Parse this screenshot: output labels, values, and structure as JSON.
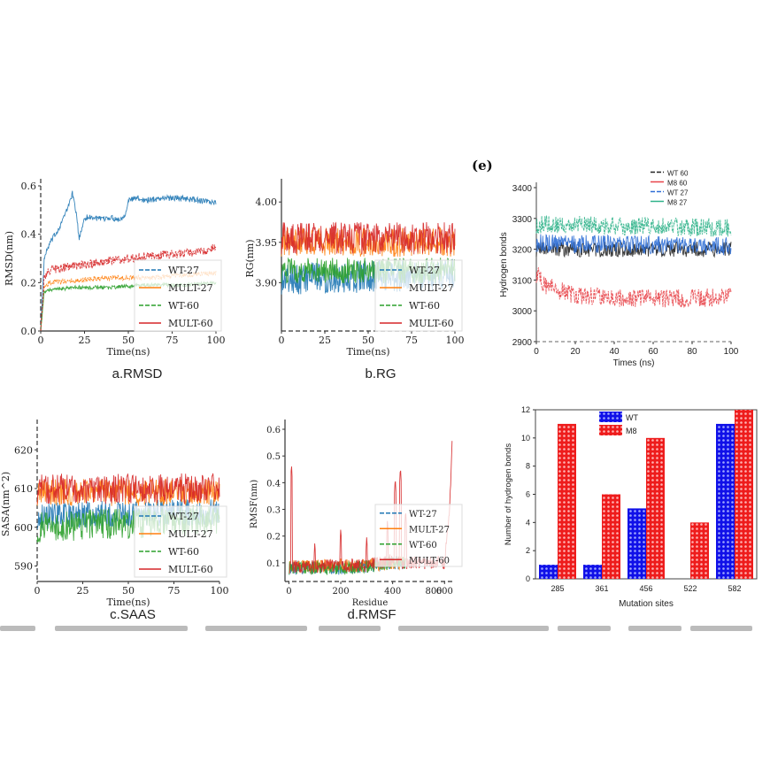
{
  "panel_e_label": "(e)",
  "captions": {
    "a": "a.RMSD",
    "b": "b.RG",
    "c": "c.SAAS",
    "d": "d.RMSF"
  },
  "colors": {
    "blue": "#1f77b4",
    "orange": "#ff7f0e",
    "green": "#2ca02c",
    "red": "#d62728",
    "bar_wt": "#1010e8",
    "bar_m8": "#ee1c1c"
  },
  "chart_data": [
    {
      "id": "a",
      "type": "line",
      "xlabel": "Time(ns)",
      "ylabel": "RMSD(nm)",
      "xlim": [
        0,
        100
      ],
      "ylim": [
        0,
        0.6
      ],
      "xticks": [
        0,
        25,
        50,
        75,
        100
      ],
      "yticks": [
        0.0,
        0.2,
        0.4,
        0.6
      ],
      "legend_position": "lower-right",
      "series": [
        {
          "name": "WT-27",
          "color": "#1f77b4",
          "x": [
            0,
            2,
            5,
            10,
            15,
            18,
            20,
            22,
            25,
            30,
            35,
            40,
            45,
            48,
            50,
            55,
            60,
            70,
            80,
            90,
            100
          ],
          "y": [
            0.0,
            0.3,
            0.36,
            0.42,
            0.5,
            0.57,
            0.5,
            0.38,
            0.47,
            0.47,
            0.46,
            0.47,
            0.46,
            0.48,
            0.54,
            0.55,
            0.54,
            0.55,
            0.55,
            0.54,
            0.53
          ],
          "noise": 0.012
        },
        {
          "name": "MULT-27",
          "color": "#ff7f0e",
          "x": [
            0,
            2,
            5,
            20,
            40,
            60,
            80,
            100
          ],
          "y": [
            0.0,
            0.18,
            0.2,
            0.21,
            0.22,
            0.22,
            0.23,
            0.24
          ],
          "noise": 0.01
        },
        {
          "name": "WT-60",
          "color": "#2ca02c",
          "x": [
            0,
            2,
            5,
            20,
            40,
            60,
            80,
            100
          ],
          "y": [
            0.0,
            0.16,
            0.17,
            0.18,
            0.18,
            0.19,
            0.19,
            0.2
          ],
          "noise": 0.008
        },
        {
          "name": "MULT-60",
          "color": "#d62728",
          "x": [
            0,
            2,
            5,
            20,
            40,
            60,
            80,
            95,
            100
          ],
          "y": [
            0.0,
            0.22,
            0.25,
            0.27,
            0.29,
            0.31,
            0.32,
            0.33,
            0.35
          ],
          "noise": 0.018
        }
      ]
    },
    {
      "id": "b",
      "type": "line",
      "xlabel": "Time(ns)",
      "ylabel": "RG(nm)",
      "xlim": [
        0,
        100
      ],
      "ylim": [
        3.84,
        4.02
      ],
      "xticks": [
        0,
        25,
        50,
        75,
        100
      ],
      "yticks": [
        3.9,
        3.95,
        4.0
      ],
      "legend_position": "lower-right",
      "series": [
        {
          "name": "WT-27",
          "color": "#1f77b4",
          "x": [
            0,
            100
          ],
          "y": [
            3.905,
            3.91
          ],
          "noise": 0.02
        },
        {
          "name": "MULT-27",
          "color": "#ff7f0e",
          "x": [
            0,
            100
          ],
          "y": [
            3.95,
            3.95
          ],
          "noise": 0.018
        },
        {
          "name": "WT-60",
          "color": "#2ca02c",
          "x": [
            0,
            100
          ],
          "y": [
            3.915,
            3.915
          ],
          "noise": 0.016
        },
        {
          "name": "MULT-60",
          "color": "#d62728",
          "x": [
            0,
            100
          ],
          "y": [
            3.955,
            3.955
          ],
          "noise": 0.02
        }
      ]
    },
    {
      "id": "c",
      "type": "line",
      "xlabel": "Time(ns)",
      "ylabel": "SASA(nm^2)",
      "xlim": [
        0,
        100
      ],
      "ylim": [
        586,
        626
      ],
      "xticks": [
        0,
        25,
        50,
        75,
        100
      ],
      "yticks": [
        590,
        600,
        610,
        620
      ],
      "legend_position": "lower-right",
      "series": [
        {
          "name": "WT-27",
          "color": "#1f77b4",
          "x": [
            0,
            100
          ],
          "y": [
            603,
            604
          ],
          "noise": 3.5
        },
        {
          "name": "MULT-27",
          "color": "#ff7f0e",
          "x": [
            0,
            100
          ],
          "y": [
            609,
            609
          ],
          "noise": 3.5
        },
        {
          "name": "WT-60",
          "color": "#2ca02c",
          "x": [
            0,
            100
          ],
          "y": [
            600,
            602
          ],
          "noise": 4
        },
        {
          "name": "MULT-60",
          "color": "#d62728",
          "x": [
            0,
            100
          ],
          "y": [
            610,
            610
          ],
          "noise": 4
        }
      ]
    },
    {
      "id": "d",
      "type": "line",
      "xlabel": "Residue",
      "ylabel": "RMSF(nm)",
      "xlim": [
        -15,
        640
      ],
      "ylim": [
        0.03,
        0.61
      ],
      "xticks": [
        0,
        200,
        400,
        600
      ],
      "yticks": [
        0.1,
        0.2,
        0.3,
        0.4,
        0.5,
        0.6
      ],
      "extra_tick_labels": [
        "800"
      ],
      "legend_position": "center-right",
      "series": [
        {
          "name": "WT-27",
          "color": "#1f77b4",
          "x": [
            0,
            100,
            200,
            300,
            400,
            450
          ],
          "y": [
            0.08,
            0.08,
            0.08,
            0.085,
            0.1,
            0.1
          ],
          "noise": 0.025
        },
        {
          "name": "MULT-27",
          "color": "#ff7f0e",
          "x": [
            0,
            100,
            200,
            300,
            400,
            450
          ],
          "y": [
            0.085,
            0.085,
            0.09,
            0.09,
            0.1,
            0.1
          ],
          "noise": 0.025
        },
        {
          "name": "WT-60",
          "color": "#2ca02c",
          "x": [
            0,
            100,
            200,
            300,
            400,
            450
          ],
          "y": [
            0.08,
            0.08,
            0.08,
            0.085,
            0.1,
            0.1
          ],
          "noise": 0.025
        },
        {
          "name": "MULT-60",
          "color": "#d62728",
          "x": [
            0,
            100,
            200,
            300,
            400,
            450,
            600,
            620,
            630
          ],
          "y": [
            0.085,
            0.085,
            0.09,
            0.09,
            0.11,
            0.1,
            0.1,
            0.3,
            0.58
          ],
          "noise": 0.025
        }
      ],
      "peaks": [
        {
          "x": 10,
          "y": 0.47
        },
        {
          "x": 100,
          "y": 0.18
        },
        {
          "x": 200,
          "y": 0.23
        },
        {
          "x": 300,
          "y": 0.2
        },
        {
          "x": 380,
          "y": 0.26
        },
        {
          "x": 410,
          "y": 0.42
        },
        {
          "x": 430,
          "y": 0.46
        },
        {
          "x": 450,
          "y": 0.3
        }
      ]
    },
    {
      "id": "e",
      "type": "line",
      "xlabel": "Times (ns)",
      "ylabel": "Hydrogen bonds",
      "xlim": [
        0,
        100
      ],
      "ylim": [
        2900,
        3400
      ],
      "xticks": [
        0,
        20,
        40,
        60,
        80,
        100
      ],
      "yticks": [
        2900,
        3000,
        3100,
        3200,
        3300,
        3400
      ],
      "legend_position": "top-center",
      "series": [
        {
          "name": "WT 60",
          "color": "#222222",
          "x": [
            0,
            100
          ],
          "y": [
            3200,
            3200
          ],
          "noise": 25
        },
        {
          "name": "M8 60",
          "color": "#e8454a",
          "x": [
            0,
            5,
            20,
            50,
            80,
            100
          ],
          "y": [
            3120,
            3080,
            3050,
            3040,
            3040,
            3050
          ],
          "noise": 30
        },
        {
          "name": "WT 27",
          "color": "#2f6fd6",
          "x": [
            0,
            100
          ],
          "y": [
            3220,
            3210
          ],
          "noise": 30
        },
        {
          "name": "M8 27",
          "color": "#2fb38a",
          "x": [
            0,
            100
          ],
          "y": [
            3280,
            3270
          ],
          "noise": 30
        }
      ]
    },
    {
      "id": "f",
      "type": "bar",
      "xlabel": "Mutation sites",
      "ylabel": "Number of hydrogen bonds",
      "ylim": [
        0,
        12
      ],
      "yticks": [
        0,
        2,
        4,
        6,
        8,
        10,
        12
      ],
      "categories": [
        "285",
        "361",
        "456",
        "522",
        "582"
      ],
      "legend_position": "top-left",
      "series": [
        {
          "name": "WT",
          "color": "#1010e8",
          "values": [
            1,
            1,
            5,
            0,
            11
          ]
        },
        {
          "name": "M8",
          "color": "#ee1c1c",
          "values": [
            11,
            6,
            10,
            4,
            12
          ]
        }
      ]
    }
  ]
}
